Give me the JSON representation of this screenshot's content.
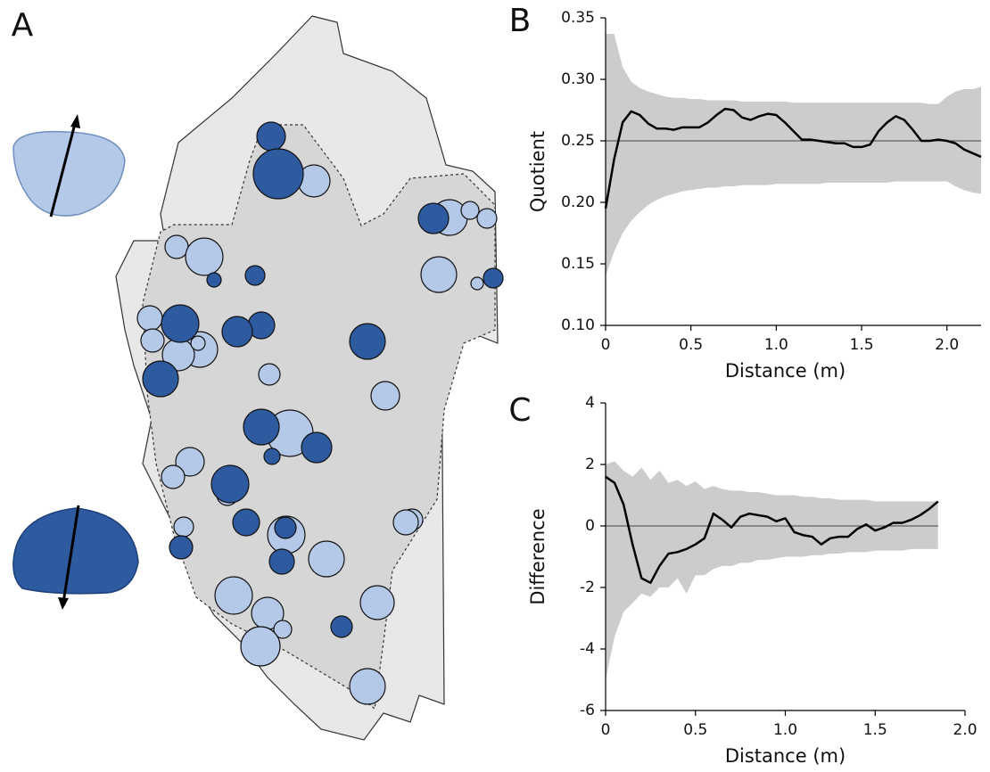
{
  "chart_data": [
    {
      "type": "map",
      "label": "A"
    },
    {
      "type": "line",
      "label": "B",
      "xlabel": "Distance (m)",
      "ylabel": "Quotient",
      "color": "#000000",
      "band_color": "#cccccc",
      "reference": 0.25,
      "xlim": [
        0,
        2.2
      ],
      "ylim": [
        0.1,
        0.35
      ],
      "xticks": [
        0,
        0.5,
        {
          "value": 1.0,
          "label": "1.0"
        },
        1.5,
        {
          "value": 2.0,
          "label": "2.0"
        }
      ],
      "yticks": [
        {
          "value": 0.1,
          "label": "0.10"
        },
        0.15,
        {
          "value": 0.2,
          "label": "0.20"
        },
        0.25,
        {
          "value": 0.3,
          "label": "0.30"
        },
        0.35
      ],
      "x": [
        0,
        0.05,
        0.1,
        0.15,
        0.2,
        0.25,
        0.3,
        0.35,
        0.4,
        0.45,
        0.5,
        0.55,
        0.6,
        0.65,
        0.7,
        0.75,
        0.8,
        0.85,
        0.9,
        0.95,
        1.0,
        1.05,
        1.1,
        1.15,
        1.2,
        1.25,
        1.3,
        1.35,
        1.4,
        1.45,
        1.5,
        1.55,
        1.6,
        1.65,
        1.7,
        1.75,
        1.8,
        1.85,
        1.9,
        1.95,
        2.0,
        2.05,
        2.1,
        2.15,
        2.2
      ],
      "values": [
        0.195,
        0.235,
        0.265,
        0.274,
        0.271,
        0.264,
        0.26,
        0.26,
        0.259,
        0.261,
        0.261,
        0.261,
        0.265,
        0.271,
        0.276,
        0.275,
        0.269,
        0.267,
        0.27,
        0.272,
        0.271,
        0.265,
        0.258,
        0.251,
        0.251,
        0.25,
        0.249,
        0.248,
        0.248,
        0.245,
        0.245,
        0.247,
        0.258,
        0.265,
        0.27,
        0.267,
        0.259,
        0.25,
        0.25,
        0.251,
        0.25,
        0.248,
        0.243,
        0.24,
        0.237
      ],
      "upper": [
        0.337,
        0.337,
        0.31,
        0.298,
        0.293,
        0.29,
        0.288,
        0.286,
        0.285,
        0.285,
        0.284,
        0.284,
        0.283,
        0.283,
        0.283,
        0.283,
        0.282,
        0.282,
        0.282,
        0.282,
        0.282,
        0.282,
        0.281,
        0.281,
        0.281,
        0.281,
        0.281,
        0.281,
        0.281,
        0.281,
        0.281,
        0.281,
        0.281,
        0.281,
        0.281,
        0.281,
        0.281,
        0.281,
        0.28,
        0.28,
        0.286,
        0.29,
        0.292,
        0.292,
        0.294
      ],
      "lower": [
        0.14,
        0.16,
        0.175,
        0.185,
        0.192,
        0.198,
        0.202,
        0.205,
        0.207,
        0.209,
        0.21,
        0.211,
        0.212,
        0.212,
        0.213,
        0.213,
        0.214,
        0.214,
        0.214,
        0.214,
        0.215,
        0.215,
        0.215,
        0.215,
        0.215,
        0.215,
        0.216,
        0.216,
        0.216,
        0.216,
        0.216,
        0.216,
        0.216,
        0.216,
        0.217,
        0.217,
        0.217,
        0.217,
        0.217,
        0.217,
        0.217,
        0.213,
        0.21,
        0.208,
        0.207
      ]
    },
    {
      "type": "line",
      "label": "C",
      "xlabel": "Distance (m)",
      "ylabel": "Difference",
      "color": "#000000",
      "band_color": "#cccccc",
      "reference": 0,
      "xlim": [
        0,
        2.0
      ],
      "ylim": [
        -6,
        4
      ],
      "xticks": [
        0,
        0.5,
        {
          "value": 1.0,
          "label": "1.0"
        },
        1.5,
        {
          "value": 2.0,
          "label": "2.0"
        }
      ],
      "yticks": [
        -6,
        -4,
        -2,
        0,
        2,
        4
      ],
      "x": [
        0,
        0.05,
        0.1,
        0.15,
        0.2,
        0.25,
        0.3,
        0.35,
        0.4,
        0.45,
        0.5,
        0.55,
        0.6,
        0.65,
        0.7,
        0.75,
        0.8,
        0.85,
        0.9,
        0.95,
        1.0,
        1.05,
        1.1,
        1.15,
        1.2,
        1.25,
        1.3,
        1.35,
        1.4,
        1.45,
        1.5,
        1.55,
        1.6,
        1.65,
        1.7,
        1.75,
        1.8,
        1.85
      ],
      "values": [
        1.6,
        1.4,
        0.7,
        -0.6,
        -1.7,
        -1.85,
        -1.3,
        -0.9,
        -0.85,
        -0.75,
        -0.6,
        -0.4,
        0.4,
        0.2,
        -0.05,
        0.3,
        0.4,
        0.35,
        0.3,
        0.15,
        0.25,
        -0.2,
        -0.3,
        -0.35,
        -0.6,
        -0.4,
        -0.35,
        -0.35,
        -0.1,
        0.05,
        -0.15,
        -0.05,
        0.1,
        0.1,
        0.2,
        0.35,
        0.55,
        0.8
      ],
      "upper": [
        2.0,
        2.1,
        1.8,
        1.6,
        1.9,
        1.5,
        1.8,
        1.4,
        1.5,
        1.3,
        1.45,
        1.2,
        1.3,
        1.2,
        1.15,
        1.15,
        1.1,
        1.1,
        1.05,
        1.0,
        1.0,
        1.0,
        0.95,
        0.95,
        0.9,
        0.9,
        0.85,
        0.85,
        0.85,
        0.85,
        0.8,
        0.8,
        0.8,
        0.8,
        0.8,
        0.8,
        0.8,
        0.8
      ],
      "lower": [
        -5.0,
        -3.6,
        -2.8,
        -2.5,
        -2.2,
        -2.3,
        -2.0,
        -2.0,
        -1.7,
        -2.2,
        -1.6,
        -1.6,
        -1.4,
        -1.3,
        -1.3,
        -1.2,
        -1.2,
        -1.1,
        -1.1,
        -1.05,
        -1.0,
        -1.0,
        -1.0,
        -0.95,
        -0.95,
        -0.9,
        -0.9,
        -0.85,
        -0.85,
        -0.85,
        -0.8,
        -0.8,
        -0.8,
        -0.8,
        -0.75,
        -0.75,
        -0.75,
        -0.75
      ]
    }
  ]
}
